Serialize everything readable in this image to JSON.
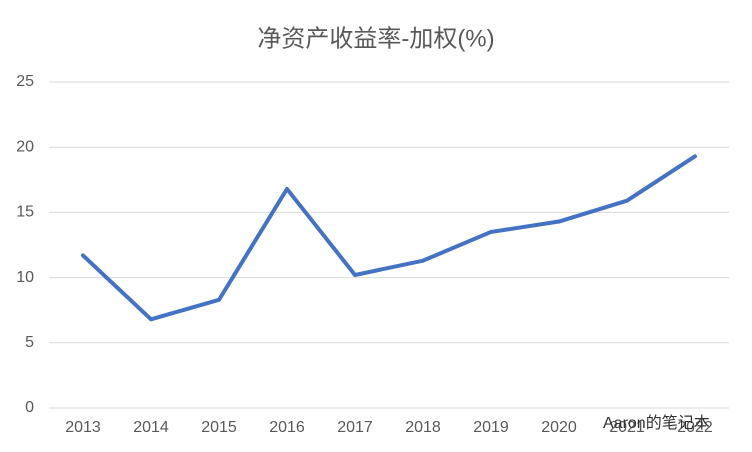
{
  "chart_data": {
    "type": "line",
    "title": "净资产收益率-加权(%)",
    "categories": [
      "2013",
      "2014",
      "2015",
      "2016",
      "2017",
      "2018",
      "2019",
      "2020",
      "2021",
      "2022"
    ],
    "series": [
      {
        "name": "净资产收益率-加权",
        "color": "#4472c4",
        "values": [
          11.7,
          6.8,
          8.3,
          16.8,
          10.2,
          11.3,
          13.5,
          14.3,
          15.9,
          19.3
        ]
      }
    ],
    "ylim": [
      0,
      25
    ],
    "yticks": [
      0,
      5,
      10,
      15,
      20,
      25
    ],
    "grid": true,
    "watermark": "Aaron的笔记本"
  }
}
